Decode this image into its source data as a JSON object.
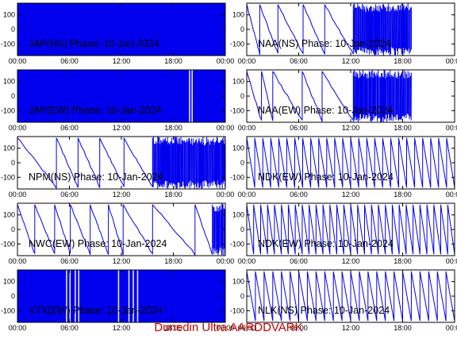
{
  "footer_text": "Dunedin Ultra AARDDVARK",
  "colors": {
    "trace": "#0000ee",
    "footer": "#cc0000"
  },
  "chart_data": [
    {
      "type": "line",
      "title": "JAP(NS) Phase: 10-Jan-2024",
      "xlim": [
        0,
        24
      ],
      "ylim": [
        -180,
        180
      ],
      "xticks": [
        "00:00",
        "06:00",
        "12:00",
        "18:00",
        "00:00"
      ],
      "yticks": [
        100,
        0,
        -100
      ],
      "pattern": "dense",
      "bright": []
    },
    {
      "type": "line",
      "title": "NAA(NS) Phase: 10-Jan-2024",
      "xlim": [
        0,
        24
      ],
      "ylim": [
        -180,
        180
      ],
      "xticks": [
        "00:00",
        "06:00",
        "12:00",
        "18:00",
        "00:00"
      ],
      "yticks": [
        100,
        0,
        -100
      ],
      "pattern": "mixed",
      "ramp_starts": [
        0.0,
        1.5,
        3.6,
        6.5,
        9.0
      ],
      "noise": [
        12.3,
        19.0
      ]
    },
    {
      "type": "line",
      "title": "JAP(EW) Phase: 10-Jan-2024",
      "xlim": [
        0,
        24
      ],
      "ylim": [
        -180,
        180
      ],
      "xticks": [
        "00:00",
        "06:00",
        "12:00",
        "18:00",
        "00:00"
      ],
      "yticks": [
        100,
        0,
        -100
      ],
      "pattern": "dense",
      "bright": [
        19.8,
        20.1
      ]
    },
    {
      "type": "line",
      "title": "NAA(EW) Phase: 10-Jan-2024",
      "xlim": [
        0,
        24
      ],
      "ylim": [
        -180,
        180
      ],
      "xticks": [
        "00:00",
        "06:00",
        "12:00",
        "18:00",
        "00:00"
      ],
      "yticks": [
        100,
        0,
        -100
      ],
      "pattern": "mixed",
      "ramp_starts": [
        0.0,
        1.7,
        3.0,
        6.4,
        8.7
      ],
      "noise": [
        12.3,
        19.0
      ]
    },
    {
      "type": "line",
      "title": "NPM(NS) Phase: 10-Jan-2024",
      "xlim": [
        0,
        24
      ],
      "ylim": [
        -180,
        180
      ],
      "xticks": [
        "00:00",
        "06:00",
        "12:00",
        "18:00",
        "00:00"
      ],
      "yticks": [
        100,
        0,
        -100
      ],
      "pattern": "mixed",
      "ramp_starts": [
        0.0,
        4.5,
        7.0,
        9.5,
        12.3
      ],
      "noise": [
        15.6,
        24.0
      ]
    },
    {
      "type": "line",
      "title": "NDK(EW) Phase: 10-Jan-2024",
      "xlim": [
        0,
        24
      ],
      "ylim": [
        -180,
        180
      ],
      "xticks": [
        "00:00",
        "06:00",
        "12:00",
        "18:00",
        "00:00"
      ],
      "yticks": [
        100,
        0,
        -100
      ],
      "pattern": "ramps",
      "count": 26
    },
    {
      "type": "line",
      "title": "NWC(EW) Phase: 10-Jan-2024",
      "xlim": [
        0,
        24
      ],
      "ylim": [
        -180,
        180
      ],
      "xticks": [
        "00:00",
        "06:00",
        "12:00",
        "18:00",
        "00:00"
      ],
      "yticks": [
        100,
        0,
        -100
      ],
      "pattern": "mixed",
      "ramp_starts": [
        0.0,
        2.0,
        4.3,
        6.1,
        8.4,
        10.5,
        12.2,
        15.6,
        20.5
      ],
      "noise": [
        22.5,
        24.0
      ]
    },
    {
      "type": "line",
      "title": "NDK(EW) Phase: 10-Jan-2024",
      "xlim": [
        0,
        24
      ],
      "ylim": [
        -180,
        180
      ],
      "xticks": [
        "00:00",
        "06:00",
        "12:00",
        "18:00",
        "00:00"
      ],
      "yticks": [
        100,
        0,
        -100
      ],
      "pattern": "ramps",
      "count": 30
    },
    {
      "type": "line",
      "title": "VTX(EW) Phase: 10-Jan-2024",
      "xlim": [
        0,
        24
      ],
      "ylim": [
        -180,
        180
      ],
      "xticks": [
        "00:00",
        "06:00",
        "12:00",
        "18:00",
        "00:00"
      ],
      "yticks": [
        100,
        0,
        -100
      ],
      "pattern": "dense",
      "bright": [
        5.6,
        6.0,
        6.6,
        7.0,
        11.6,
        12.8,
        13.3,
        13.8
      ]
    },
    {
      "type": "line",
      "title": "NLK(NS) Phase: 10-Jan-2024",
      "xlim": [
        0,
        24
      ],
      "ylim": [
        -180,
        180
      ],
      "xticks": [
        "00:00",
        "06:00",
        "12:00",
        "18:00",
        "00:00"
      ],
      "yticks": [
        100,
        0,
        -100
      ],
      "pattern": "ramps",
      "count": 24
    }
  ]
}
